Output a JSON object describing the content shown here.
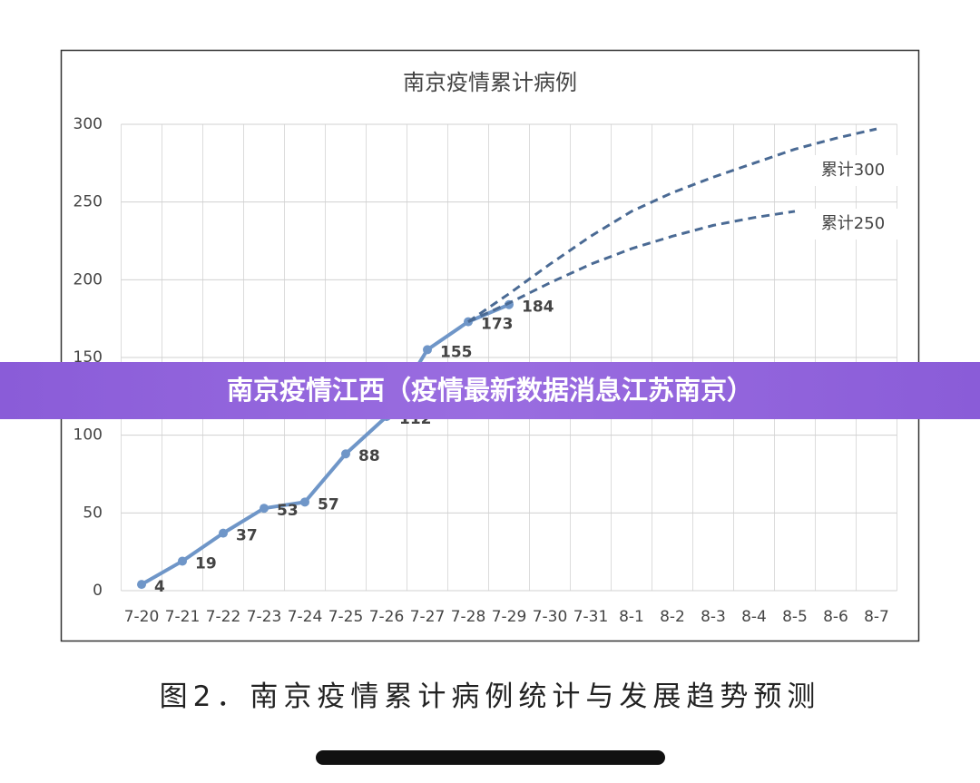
{
  "chart_data": {
    "type": "line",
    "title": "南京疫情累计病例",
    "categories": [
      "7-20",
      "7-21",
      "7-22",
      "7-23",
      "7-24",
      "7-25",
      "7-26",
      "7-27",
      "7-28",
      "7-29",
      "7-30",
      "7-31",
      "8-1",
      "8-2",
      "8-3",
      "8-4",
      "8-5",
      "8-6",
      "8-7"
    ],
    "series": [
      {
        "color": "#6f96c8",
        "values": [
          4,
          19,
          37,
          53,
          57,
          88,
          112,
          155,
          173,
          184,
          null,
          null,
          null,
          null,
          null,
          null,
          null,
          null,
          null
        ]
      },
      {
        "name": "累计300",
        "color": "#4a6a94",
        "dashed": true,
        "values": [
          null,
          null,
          null,
          null,
          null,
          null,
          null,
          null,
          173,
          191,
          210,
          228,
          244,
          256,
          266,
          275,
          284,
          291,
          297
        ]
      },
      {
        "name": "累计250",
        "color": "#4a6a94",
        "dashed": true,
        "values": [
          null,
          null,
          null,
          null,
          null,
          null,
          null,
          null,
          173,
          185,
          198,
          210,
          220,
          228,
          235,
          240,
          244,
          null,
          null
        ]
      }
    ],
    "ylim": [
      0,
      300
    ],
    "yticks": [
      0,
      50,
      100,
      150,
      200,
      250,
      300
    ],
    "grid": true
  },
  "banner": "南京疫情江西（疫情最新数据消息江苏南京）",
  "caption": "图2．南京疫情累计病例统计与发展趋势预测"
}
